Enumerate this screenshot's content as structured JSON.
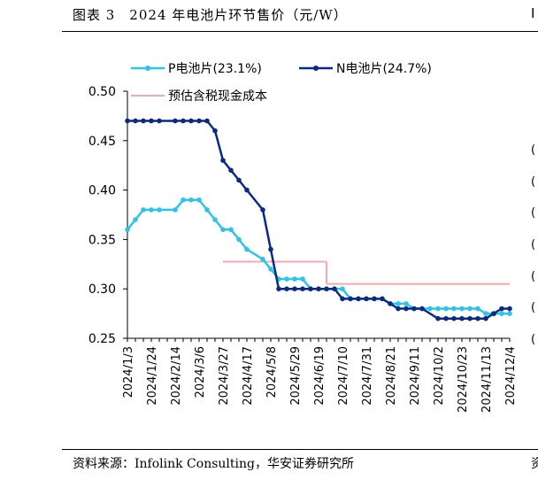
{
  "header": {
    "title": "图表 3　2024 年电池片环节售价（元/W）",
    "edge_char": "I"
  },
  "footer": {
    "source": "资料来源：Infolink Consulting，华安证券研究所",
    "edge_char": "资"
  },
  "right_edge_marks": [
    "(",
    "(",
    "(",
    "(",
    "(",
    "(",
    "("
  ],
  "colors": {
    "p_series": "#2EC3E8",
    "n_series": "#0B2A88",
    "estimate": "#F4A9AE"
  },
  "chart_data": {
    "type": "line",
    "title": "2024 年电池片环节售价（元/W）",
    "xlabel": "",
    "ylabel": "",
    "ylim": [
      0.25,
      0.5
    ],
    "yticks": [
      "0.25",
      "0.30",
      "0.35",
      "0.40",
      "0.45",
      "0.50"
    ],
    "x": [
      "2024/1/3",
      "2024/1/10",
      "2024/1/17",
      "2024/1/24",
      "2024/1/31",
      "2024/2/7",
      "2024/2/14",
      "2024/2/21",
      "2024/2/28",
      "2024/3/6",
      "2024/3/13",
      "2024/3/20",
      "2024/3/27",
      "2024/4/3",
      "2024/4/10",
      "2024/4/17",
      "2024/4/24",
      "2024/5/1",
      "2024/5/8",
      "2024/5/15",
      "2024/5/22",
      "2024/5/29",
      "2024/6/5",
      "2024/6/12",
      "2024/6/19",
      "2024/6/26",
      "2024/7/3",
      "2024/7/10",
      "2024/7/17",
      "2024/7/24",
      "2024/7/31",
      "2024/8/7",
      "2024/8/14",
      "2024/8/21",
      "2024/8/28",
      "2024/9/4",
      "2024/9/11",
      "2024/9/18",
      "2024/9/25",
      "2024/10/2",
      "2024/10/9",
      "2024/10/16",
      "2024/10/23",
      "2024/10/30",
      "2024/11/6",
      "2024/11/13",
      "2024/11/20",
      "2024/11/27",
      "2024/12/4"
    ],
    "xticks": [
      "2024/1/3",
      "2024/1/24",
      "2024/2/14",
      "2024/3/6",
      "2024/3/27",
      "2024/4/17",
      "2024/5/8",
      "2024/5/29",
      "2024/6/19",
      "2024/7/10",
      "2024/7/31",
      "2024/8/21",
      "2024/9/11",
      "2024/10/2",
      "2024/10/23",
      "2024/11/13",
      "2024/12/4"
    ],
    "legend": [
      {
        "key": "p",
        "label": "P电池片(23.1%)"
      },
      {
        "key": "n",
        "label": "N电池片(24.7%)"
      },
      {
        "key": "est",
        "label": "预估含税现金成本"
      }
    ],
    "series": [
      {
        "key": "p",
        "name": "P电池片(23.1%)",
        "markers": true,
        "values": [
          0.36,
          0.37,
          0.38,
          0.38,
          0.38,
          null,
          0.38,
          0.39,
          0.39,
          0.39,
          0.38,
          0.37,
          0.36,
          0.36,
          0.35,
          0.34,
          null,
          0.33,
          0.32,
          0.31,
          0.31,
          0.31,
          0.31,
          0.3,
          0.3,
          0.3,
          0.3,
          0.3,
          0.29,
          0.29,
          0.29,
          0.29,
          0.29,
          0.285,
          0.285,
          0.285,
          0.28,
          0.28,
          0.28,
          0.28,
          0.28,
          0.28,
          0.28,
          0.28,
          0.28,
          0.275,
          0.275,
          0.275,
          0.275
        ]
      },
      {
        "key": "n",
        "name": "N电池片(24.7%)",
        "markers": true,
        "values": [
          0.47,
          0.47,
          0.47,
          0.47,
          0.47,
          null,
          0.47,
          0.47,
          0.47,
          0.47,
          0.47,
          0.46,
          0.43,
          0.42,
          0.41,
          0.4,
          null,
          0.38,
          0.34,
          0.3,
          0.3,
          0.3,
          0.3,
          0.3,
          0.3,
          0.3,
          0.3,
          0.29,
          0.29,
          0.29,
          0.29,
          0.29,
          0.29,
          0.285,
          0.28,
          0.28,
          0.28,
          0.28,
          null,
          0.27,
          0.27,
          0.27,
          0.27,
          0.27,
          0.27,
          0.27,
          0.275,
          0.28,
          0.28
        ]
      },
      {
        "key": "est",
        "name": "预估含税现金成本",
        "markers": false,
        "segments": [
          {
            "from": "2024/3/27",
            "to": "2024/6/26",
            "value": 0.3275
          },
          {
            "from": "2024/7/3",
            "to": "2024/12/4",
            "value": 0.305
          }
        ]
      }
    ]
  }
}
